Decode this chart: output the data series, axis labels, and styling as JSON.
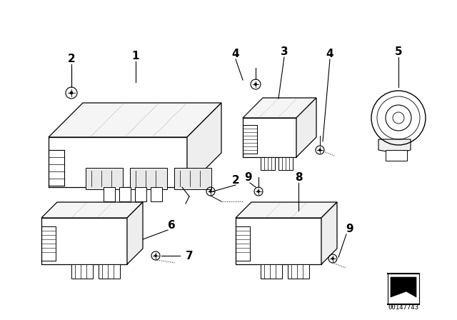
{
  "bg_color": "#ffffff",
  "line_color": "#000000",
  "fig_width": 6.4,
  "fig_height": 4.48,
  "dpi": 100,
  "watermark": "00147743"
}
